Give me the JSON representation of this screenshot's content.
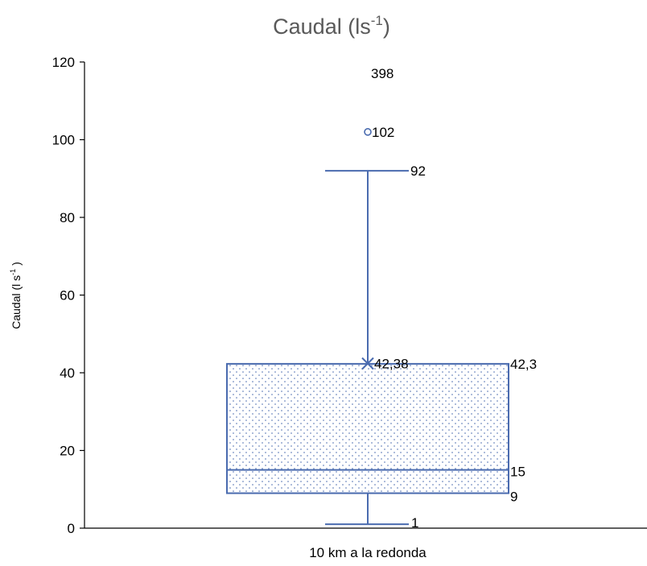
{
  "chart_data": {
    "type": "box",
    "title": "Caudal (ls",
    "title_superscript": "-1",
    "title_suffix": ")",
    "ylabel": "Caudal (l s",
    "ylabel_superscript": "-1",
    "ylabel_suffix": " )",
    "xlabel": "",
    "categories": [
      "10 km a la redonda"
    ],
    "ylim": [
      0,
      120
    ],
    "yticks": [
      "0",
      "20",
      "40",
      "60",
      "80",
      "100",
      "120"
    ],
    "gridlines": false,
    "legend": "none",
    "box": {
      "min": 1,
      "q1": 9,
      "median": 15,
      "q3": 42.3,
      "whisker_high": 92,
      "mean": 42.38,
      "outliers": [
        102
      ],
      "max_off_scale": 398
    },
    "data_labels": {
      "max": "398",
      "outlier": "102",
      "whisker_high": "92",
      "mean": "42,38",
      "q3": "42,3",
      "median": "15",
      "q1": "9",
      "min": "1"
    },
    "colors": {
      "box_stroke": "#4a6baf",
      "box_dots": "#4a6baf",
      "axis": "#000000",
      "title": "#595959",
      "text": "#000000"
    }
  }
}
